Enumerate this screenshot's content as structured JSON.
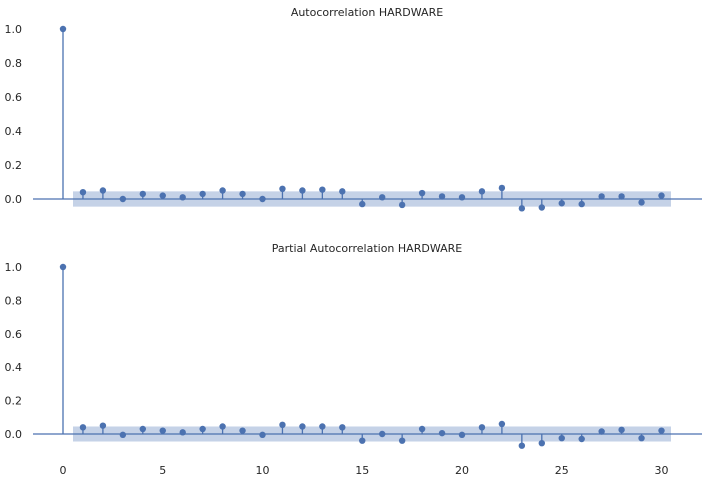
{
  "colors": {
    "marker": "#4c72b0",
    "band": "#c5d2e7",
    "baseline": "#4c72b0",
    "text": "#262626"
  },
  "chart_data": [
    {
      "type": "stem",
      "title": "Autocorrelation HARDWARE",
      "xlabel": "",
      "ylabel": "",
      "ylim": [
        -0.05,
        1.0
      ],
      "yticks": [
        "1.0",
        "0.8",
        "0.6",
        "0.4",
        "0.2",
        "0.0"
      ],
      "show_xticks": false,
      "grid": false,
      "lags": [
        0,
        1,
        2,
        3,
        4,
        5,
        6,
        7,
        8,
        9,
        10,
        11,
        12,
        13,
        14,
        15,
        16,
        17,
        18,
        19,
        20,
        21,
        22,
        23,
        24,
        25,
        26,
        27,
        28,
        29,
        30
      ],
      "values": [
        1.0,
        0.04,
        0.05,
        0.0,
        0.03,
        0.02,
        0.01,
        0.03,
        0.05,
        0.03,
        0.0,
        0.06,
        0.05,
        0.055,
        0.045,
        -0.03,
        0.01,
        -0.035,
        0.035,
        0.015,
        0.01,
        0.045,
        0.065,
        -0.055,
        -0.05,
        -0.025,
        -0.03,
        0.015,
        0.015,
        -0.02,
        0.02
      ],
      "confint": 0.045
    },
    {
      "type": "stem",
      "title": "Partial Autocorrelation HARDWARE",
      "xlabel": "",
      "ylabel": "",
      "ylim": [
        -0.1,
        1.0
      ],
      "yticks": [
        "1.0",
        "0.8",
        "0.6",
        "0.4",
        "0.2",
        "0.0"
      ],
      "xticks": [
        "0",
        "5",
        "10",
        "15",
        "20",
        "25",
        "30"
      ],
      "show_xticks": true,
      "grid": false,
      "lags": [
        0,
        1,
        2,
        3,
        4,
        5,
        6,
        7,
        8,
        9,
        10,
        11,
        12,
        13,
        14,
        15,
        16,
        17,
        18,
        19,
        20,
        21,
        22,
        23,
        24,
        25,
        26,
        27,
        28,
        29,
        30
      ],
      "values": [
        1.0,
        0.04,
        0.05,
        -0.005,
        0.03,
        0.02,
        0.01,
        0.03,
        0.045,
        0.02,
        -0.005,
        0.055,
        0.045,
        0.045,
        0.04,
        -0.04,
        0.0,
        -0.04,
        0.03,
        0.005,
        -0.005,
        0.04,
        0.06,
        -0.07,
        -0.055,
        -0.025,
        -0.03,
        0.015,
        0.025,
        -0.025,
        0.02
      ],
      "confint": 0.045
    }
  ]
}
